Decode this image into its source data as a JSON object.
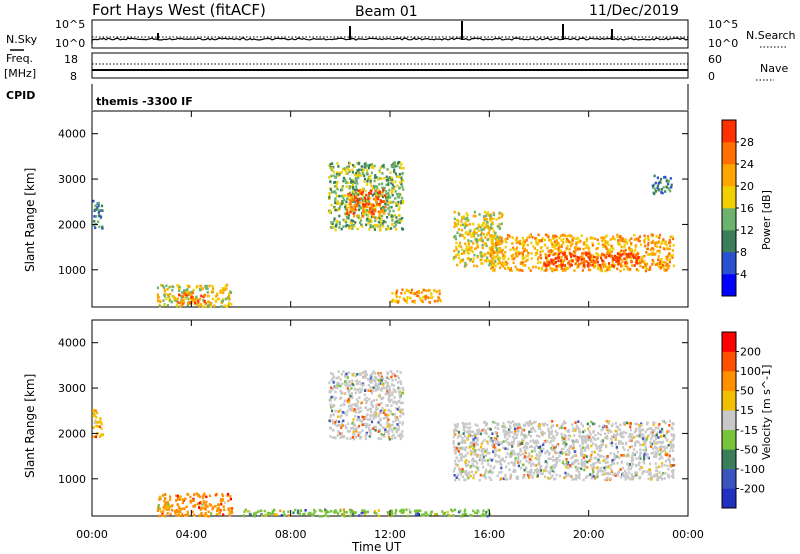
{
  "header": {
    "station": "Fort Hays West (fitACF)",
    "beam": "Beam 01",
    "date": "11/Dec/2019"
  },
  "summary": {
    "nsky_label": "N.Sky",
    "nsky_ticks": [
      "10^5",
      "10^0"
    ],
    "nsearch_label": "N.Search",
    "nsearch_ticks": [
      "10^5",
      "10^0"
    ],
    "freq_label": "Freq.",
    "freq_unit": "[MHz]",
    "freq_ticks": [
      "18",
      "8"
    ],
    "nave_label": "Nave",
    "nave_ticks": [
      "60",
      "0"
    ],
    "cpid_label": "CPID",
    "cpid_value": "themis -3300 IF"
  },
  "chart_data": [
    {
      "type": "heatmap",
      "name": "power",
      "ylabel": "Slant Range [km]",
      "yticks": [
        "1000",
        "2000",
        "3000",
        "4000"
      ],
      "ylim": [
        180,
        4500
      ],
      "xlim": [
        0,
        24
      ],
      "colorbar": {
        "label": "Power [dB]",
        "ticks": [
          "4",
          "8",
          "12",
          "16",
          "20",
          "24",
          "28"
        ],
        "colors": [
          "#0000ff",
          "#2a4fd0",
          "#3a7f5a",
          "#6db36d",
          "#f0d000",
          "#ffa500",
          "#ff7000",
          "#ff3000"
        ]
      },
      "regions": [
        {
          "t": [
            0.0,
            0.4
          ],
          "r": [
            1900,
            2550
          ],
          "v": 2
        },
        {
          "t": [
            2.6,
            5.6
          ],
          "r": [
            200,
            700
          ],
          "v": 4
        },
        {
          "t": [
            3.4,
            4.6
          ],
          "r": [
            250,
            520
          ],
          "v": 6
        },
        {
          "t": [
            9.5,
            12.5
          ],
          "r": [
            1900,
            3400
          ],
          "v": 3
        },
        {
          "t": [
            10.2,
            11.8
          ],
          "r": [
            2200,
            2800
          ],
          "v": 6
        },
        {
          "t": [
            12.0,
            14.0
          ],
          "r": [
            300,
            600
          ],
          "v": 5
        },
        {
          "t": [
            14.5,
            16.5
          ],
          "r": [
            1100,
            2300
          ],
          "v": 4
        },
        {
          "t": [
            16.0,
            23.4
          ],
          "r": [
            1000,
            1800
          ],
          "v": 5
        },
        {
          "t": [
            18.0,
            22.0
          ],
          "r": [
            1100,
            1400
          ],
          "v": 7
        },
        {
          "t": [
            22.5,
            23.3
          ],
          "r": [
            2700,
            3100
          ],
          "v": 2
        }
      ]
    },
    {
      "type": "heatmap",
      "name": "velocity",
      "xlabel": "Time UT",
      "xticks": [
        "00:00",
        "04:00",
        "08:00",
        "12:00",
        "16:00",
        "20:00",
        "00:00"
      ],
      "ylabel": "Slant Range [km]",
      "yticks": [
        "1000",
        "2000",
        "3000",
        "4000"
      ],
      "ylim": [
        180,
        4500
      ],
      "xlim": [
        0,
        24
      ],
      "colorbar": {
        "label": "Velocity [m s^-1]",
        "ticks": [
          "200",
          "100",
          "50",
          "15",
          "-15",
          "-50",
          "-100",
          "-200"
        ],
        "colors": [
          "#2030c0",
          "#3a55c0",
          "#3a7f5a",
          "#77c43a",
          "#c8c8c8",
          "#f0c000",
          "#ff9000",
          "#ff5000",
          "#ff0000"
        ]
      },
      "regions": [
        {
          "t": [
            0.0,
            0.4
          ],
          "r": [
            1900,
            2550
          ],
          "c": 5
        },
        {
          "t": [
            2.6,
            5.6
          ],
          "r": [
            200,
            700
          ],
          "c": 6
        },
        {
          "t": [
            9.5,
            12.5
          ],
          "r": [
            1900,
            3400
          ],
          "c": 4
        },
        {
          "t": [
            14.5,
            23.4
          ],
          "r": [
            1000,
            2300
          ],
          "c": 4
        },
        {
          "t": [
            6.0,
            16.0
          ],
          "r": [
            200,
            350
          ],
          "c": 3
        }
      ]
    }
  ]
}
